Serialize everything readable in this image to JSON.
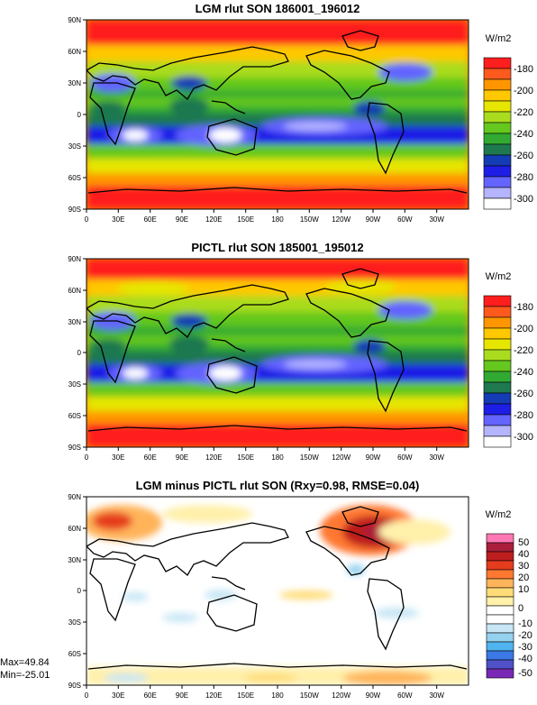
{
  "colors": {
    "abs_levels": [
      "#ffffff",
      "#b4b4ff",
      "#6464ff",
      "#1e1ee6",
      "#143cb4",
      "#1e7850",
      "#32aa32",
      "#64c81e",
      "#aadc1e",
      "#e6e600",
      "#ffc800",
      "#ff9600",
      "#ff5a1e",
      "#ff1e1e"
    ],
    "diff_levels": [
      "#7828b4",
      "#5050c8",
      "#3c78e6",
      "#50b4f0",
      "#96d2f0",
      "#c8e6f5",
      "#ffffff",
      "#ffffff",
      "#fff0aa",
      "#ffdc78",
      "#ffb45a",
      "#ff7832",
      "#e63c1e",
      "#be1e1e",
      "#aa1e3c",
      "#ff78b4"
    ],
    "coast": "#000000"
  },
  "chart_data": [
    {
      "type": "heatmap",
      "title": "LGM rlut SON 186001_196012",
      "units": "W/m2",
      "colorbar_labels": [
        "-180",
        "-200",
        "-220",
        "-240",
        "-260",
        "-280",
        "-300"
      ],
      "lon_ticks": [
        "0",
        "30E",
        "60E",
        "90E",
        "120E",
        "150E",
        "180",
        "150W",
        "120W",
        "90W",
        "60W",
        "30W"
      ],
      "lat_ticks": [
        "90N",
        "60N",
        "30N",
        "0",
        "30S",
        "60S",
        "90S"
      ],
      "xlim": [
        0,
        360
      ],
      "ylim": [
        -90,
        90
      ]
    },
    {
      "type": "heatmap",
      "title": "PICTL rlut SON 185001_195012",
      "units": "W/m2",
      "colorbar_labels": [
        "-180",
        "-200",
        "-220",
        "-240",
        "-260",
        "-280",
        "-300"
      ],
      "lon_ticks": [
        "0",
        "30E",
        "60E",
        "90E",
        "120E",
        "150E",
        "180",
        "150W",
        "120W",
        "90W",
        "60W",
        "30W"
      ],
      "lat_ticks": [
        "90N",
        "60N",
        "30N",
        "0",
        "30S",
        "60S",
        "90S"
      ],
      "xlim": [
        0,
        360
      ],
      "ylim": [
        -90,
        90
      ]
    },
    {
      "type": "heatmap",
      "title": "LGM minus PICTL rlut SON (Rxy=0.98, RMSE=0.04)",
      "units": "W/m2",
      "colorbar_labels": [
        "50",
        "40",
        "30",
        "20",
        "10",
        "0",
        "-10",
        "-20",
        "-30",
        "-40",
        "-50"
      ],
      "lon_ticks": [
        "0",
        "30E",
        "60E",
        "90E",
        "120E",
        "150E",
        "180",
        "150W",
        "120W",
        "90W",
        "60W",
        "30W"
      ],
      "lat_ticks": [
        "90N",
        "60N",
        "30N",
        "0",
        "30S",
        "60S",
        "90S"
      ],
      "xlim": [
        0,
        360
      ],
      "ylim": [
        -90,
        90
      ],
      "max_label": "Max=49.84",
      "min_label": "Min=-25.01"
    }
  ]
}
